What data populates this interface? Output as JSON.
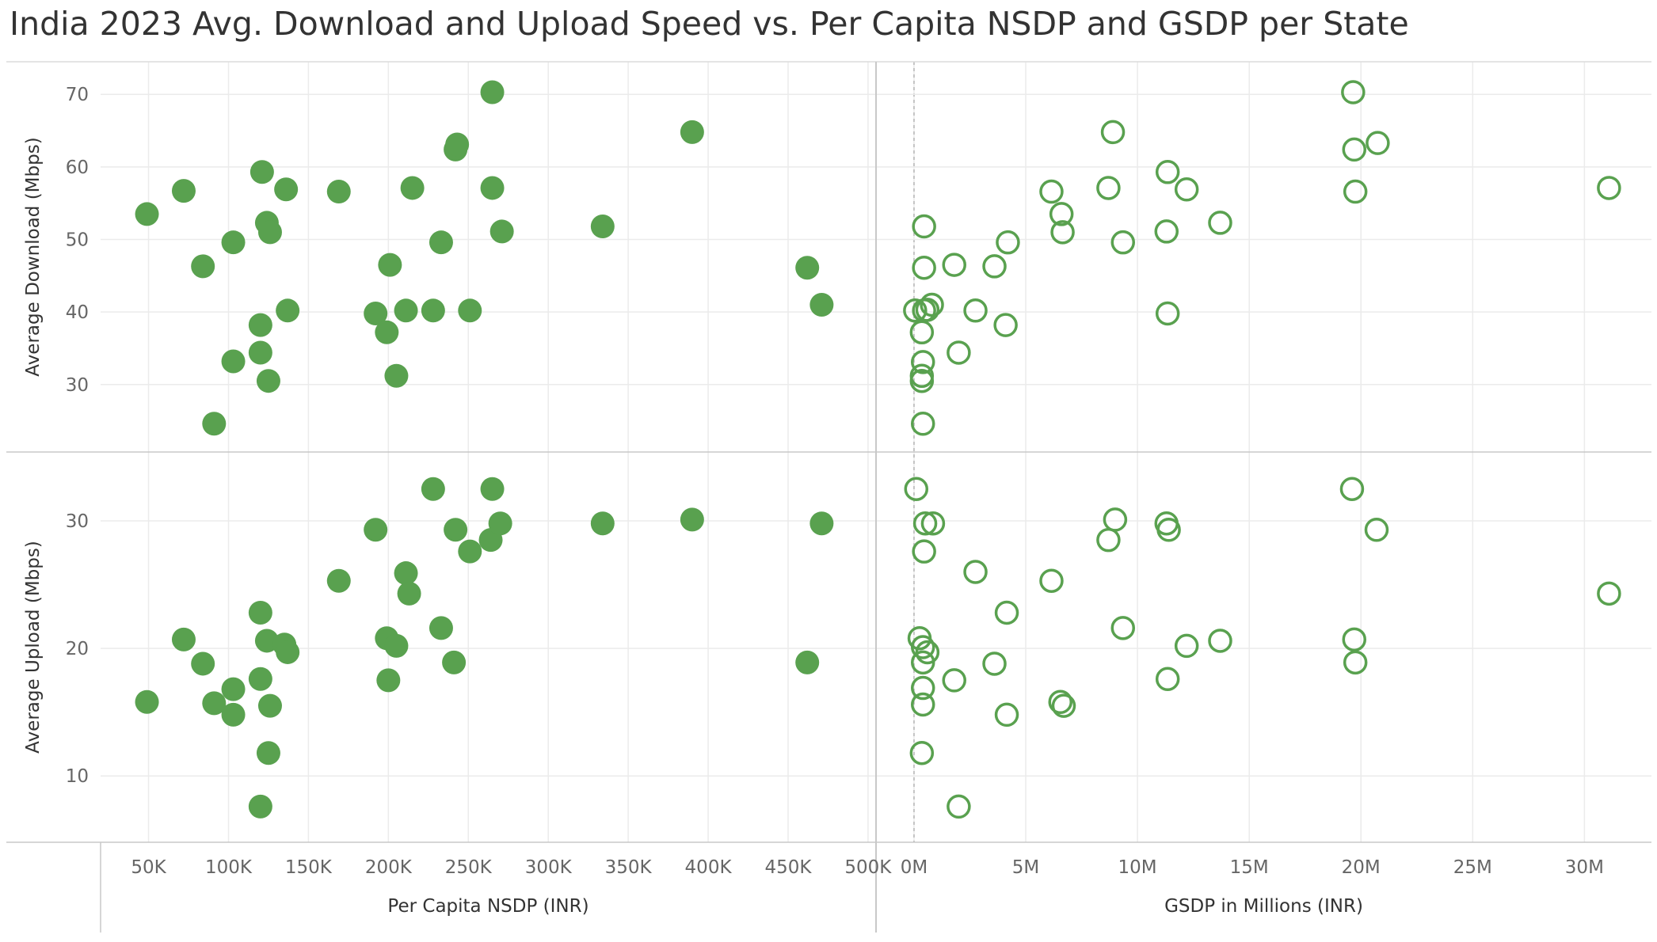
{
  "title": "India 2023 Avg. Download and Upload Speed vs. Per Capita NSDP and GSDP per State",
  "colors": {
    "marker": "#59A14F",
    "grid": "#ebebeb",
    "divider": "#c8c8c8",
    "tick_text": "#666666"
  },
  "chart_data": {
    "type": "scatter",
    "marker_color": "#59A14F",
    "columns": [
      {
        "xlabel": "Per Capita NSDP (INR)",
        "xlim": [
          20000,
          505000
        ],
        "ticks": [
          {
            "value": 50000,
            "label": "50K"
          },
          {
            "value": 100000,
            "label": "100K"
          },
          {
            "value": 150000,
            "label": "150K"
          },
          {
            "value": 200000,
            "label": "200K"
          },
          {
            "value": 250000,
            "label": "250K"
          },
          {
            "value": 300000,
            "label": "300K"
          },
          {
            "value": 350000,
            "label": "350K"
          },
          {
            "value": 400000,
            "label": "400K"
          },
          {
            "value": 450000,
            "label": "450K"
          },
          {
            "value": 500000,
            "label": "500K"
          }
        ],
        "marker": "filled"
      },
      {
        "xlabel": "GSDP in Millions (INR)",
        "xlim": [
          -1700000,
          33000000
        ],
        "ticks": [
          {
            "value": 0,
            "label": "0M"
          },
          {
            "value": 5000000,
            "label": "5M"
          },
          {
            "value": 10000000,
            "label": "10M"
          },
          {
            "value": 15000000,
            "label": "15M"
          },
          {
            "value": 20000000,
            "label": "20M"
          },
          {
            "value": 25000000,
            "label": "25M"
          },
          {
            "value": 30000000,
            "label": "30M"
          }
        ],
        "zero_line": true,
        "marker": "hollow"
      }
    ],
    "rows": [
      {
        "ylabel": "Average Download (Mbps)",
        "ylim": [
          20.7,
          74.5
        ],
        "ticks": [
          {
            "value": 30,
            "label": "30"
          },
          {
            "value": 40,
            "label": "40"
          },
          {
            "value": 50,
            "label": "50"
          },
          {
            "value": 60,
            "label": "60"
          },
          {
            "value": 70,
            "label": "70"
          }
        ]
      },
      {
        "ylabel": "Average Upload (Mbps)",
        "ylim": [
          4.8,
          35.4
        ],
        "ticks": [
          {
            "value": 10,
            "label": "10"
          },
          {
            "value": 20,
            "label": "20"
          },
          {
            "value": 30,
            "label": "30"
          }
        ]
      }
    ],
    "panels": [
      {
        "row": 0,
        "col": 0,
        "points": [
          [
            49000,
            53.5
          ],
          [
            72000,
            56.7
          ],
          [
            84000,
            46.3
          ],
          [
            91000,
            24.6
          ],
          [
            103000,
            49.6
          ],
          [
            103000,
            33.2
          ],
          [
            121000,
            59.3
          ],
          [
            120000,
            38.2
          ],
          [
            120000,
            34.4
          ],
          [
            124000,
            52.3
          ],
          [
            126000,
            51.0
          ],
          [
            125000,
            30.5
          ],
          [
            136000,
            56.9
          ],
          [
            137000,
            40.2
          ],
          [
            169000,
            56.6
          ],
          [
            192000,
            39.8
          ],
          [
            199000,
            37.2
          ],
          [
            201000,
            46.5
          ],
          [
            205000,
            31.2
          ],
          [
            211000,
            40.2
          ],
          [
            215000,
            57.1
          ],
          [
            228000,
            40.2
          ],
          [
            233000,
            49.6
          ],
          [
            242000,
            62.4
          ],
          [
            243000,
            63.1
          ],
          [
            251000,
            40.2
          ],
          [
            265000,
            70.3
          ],
          [
            265000,
            57.1
          ],
          [
            271000,
            51.1
          ],
          [
            334000,
            51.8
          ],
          [
            390000,
            64.8
          ],
          [
            462000,
            46.1
          ],
          [
            471000,
            41.0
          ]
        ]
      },
      {
        "row": 0,
        "col": 1,
        "points": [
          [
            19650000,
            70.3
          ],
          [
            8900000,
            64.8
          ],
          [
            20750000,
            63.3
          ],
          [
            19700000,
            62.4
          ],
          [
            11350000,
            59.3
          ],
          [
            31100000,
            57.1
          ],
          [
            8700000,
            57.1
          ],
          [
            12200000,
            56.9
          ],
          [
            6150000,
            56.6
          ],
          [
            19750000,
            56.6
          ],
          [
            6600000,
            53.5
          ],
          [
            13700000,
            52.3
          ],
          [
            450000,
            51.8
          ],
          [
            11300000,
            51.1
          ],
          [
            6650000,
            51.0
          ],
          [
            4200000,
            49.6
          ],
          [
            9350000,
            49.6
          ],
          [
            1800000,
            46.5
          ],
          [
            3600000,
            46.3
          ],
          [
            450000,
            46.1
          ],
          [
            800000,
            41.0
          ],
          [
            600000,
            40.3
          ],
          [
            50000,
            40.2
          ],
          [
            450000,
            40.2
          ],
          [
            2750000,
            40.2
          ],
          [
            11350000,
            39.8
          ],
          [
            4100000,
            38.2
          ],
          [
            350000,
            37.2
          ],
          [
            2000000,
            34.4
          ],
          [
            400000,
            33.1
          ],
          [
            350000,
            31.2
          ],
          [
            350000,
            30.5
          ],
          [
            400000,
            24.6
          ]
        ]
      },
      {
        "row": 1,
        "col": 0,
        "points": [
          [
            49000,
            15.8
          ],
          [
            72000,
            20.7
          ],
          [
            84000,
            18.8
          ],
          [
            91000,
            15.7
          ],
          [
            103000,
            16.8
          ],
          [
            103000,
            14.8
          ],
          [
            120000,
            22.8
          ],
          [
            120000,
            17.6
          ],
          [
            120000,
            7.6
          ],
          [
            124000,
            20.6
          ],
          [
            125000,
            11.8
          ],
          [
            126000,
            15.5
          ],
          [
            135000,
            20.3
          ],
          [
            137000,
            19.7
          ],
          [
            169000,
            25.3
          ],
          [
            192000,
            29.3
          ],
          [
            199000,
            20.8
          ],
          [
            200000,
            17.5
          ],
          [
            205000,
            20.2
          ],
          [
            211000,
            25.9
          ],
          [
            213000,
            24.3
          ],
          [
            228000,
            32.5
          ],
          [
            233000,
            21.6
          ],
          [
            241000,
            18.9
          ],
          [
            242000,
            29.3
          ],
          [
            251000,
            27.6
          ],
          [
            264000,
            28.5
          ],
          [
            265000,
            32.5
          ],
          [
            270000,
            29.8
          ],
          [
            334000,
            29.8
          ],
          [
            390000,
            30.1
          ],
          [
            462000,
            18.9
          ],
          [
            471000,
            29.8
          ]
        ]
      },
      {
        "row": 1,
        "col": 1,
        "points": [
          [
            100000,
            32.5
          ],
          [
            19600000,
            32.5
          ],
          [
            9000000,
            30.1
          ],
          [
            500000,
            29.8
          ],
          [
            850000,
            29.8
          ],
          [
            11300000,
            29.8
          ],
          [
            11400000,
            29.3
          ],
          [
            20700000,
            29.3
          ],
          [
            8700000,
            28.5
          ],
          [
            450000,
            27.6
          ],
          [
            2750000,
            26.0
          ],
          [
            6150000,
            25.3
          ],
          [
            31100000,
            24.3
          ],
          [
            4150000,
            22.8
          ],
          [
            9350000,
            21.6
          ],
          [
            250000,
            20.8
          ],
          [
            19700000,
            20.7
          ],
          [
            13700000,
            20.6
          ],
          [
            12200000,
            20.2
          ],
          [
            400000,
            20.1
          ],
          [
            600000,
            19.7
          ],
          [
            400000,
            18.9
          ],
          [
            3600000,
            18.8
          ],
          [
            19750000,
            18.9
          ],
          [
            1800000,
            17.5
          ],
          [
            11350000,
            17.6
          ],
          [
            400000,
            16.9
          ],
          [
            6550000,
            15.8
          ],
          [
            6700000,
            15.5
          ],
          [
            400000,
            15.6
          ],
          [
            4150000,
            14.8
          ],
          [
            350000,
            11.8
          ],
          [
            2000000,
            7.6
          ]
        ]
      }
    ]
  }
}
